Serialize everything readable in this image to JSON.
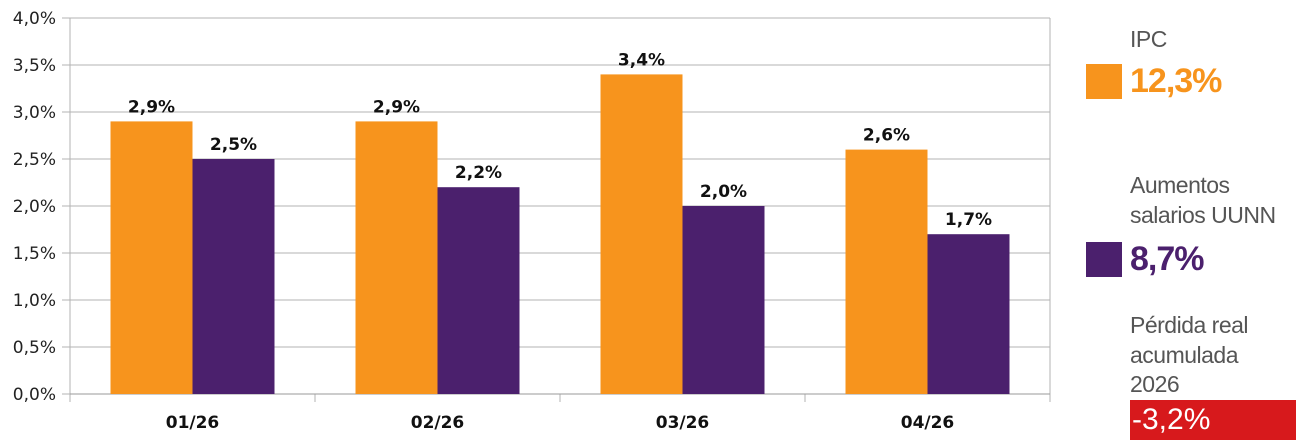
{
  "chart_data": {
    "type": "bar",
    "categories": [
      "01/26",
      "02/26",
      "03/26",
      "04/26"
    ],
    "series": [
      {
        "name": "IPC",
        "values": [
          2.9,
          2.9,
          3.4,
          2.6
        ],
        "labels": [
          "2,9%",
          "2,9%",
          "3,4%",
          "2,6%"
        ],
        "color": "#f7941d"
      },
      {
        "name": "Aumentos salarios UUNN",
        "values": [
          2.5,
          2.2,
          2.0,
          1.7
        ],
        "labels": [
          "2,5%",
          "2,2%",
          "2,0%",
          "1,7%"
        ],
        "color": "#4b206d"
      }
    ],
    "ylim": [
      0,
      4.0
    ],
    "yticks": [
      0,
      0.5,
      1.0,
      1.5,
      2.0,
      2.5,
      3.0,
      3.5,
      4.0
    ],
    "ytick_labels": [
      "0,0%",
      "0,5%",
      "1,0%",
      "1,5%",
      "2,0%",
      "2,5%",
      "3,0%",
      "3,5%",
      "4,0%"
    ],
    "grid": true,
    "legend_position": "right",
    "title": "",
    "xlabel": "",
    "ylabel": ""
  },
  "legend": {
    "ipc": {
      "label": "IPC",
      "value": "12,3%",
      "color": "#f7941d"
    },
    "salarios": {
      "label_line1": "Aumentos",
      "label_line2": "salarios UUNN",
      "value": "8,7%",
      "color": "#4b206d"
    },
    "perdida": {
      "label_line1": "Pérdida real",
      "label_line2": "acumulada",
      "label_line3": "2026",
      "value": "-3,2%",
      "color": "#d7191c"
    }
  }
}
